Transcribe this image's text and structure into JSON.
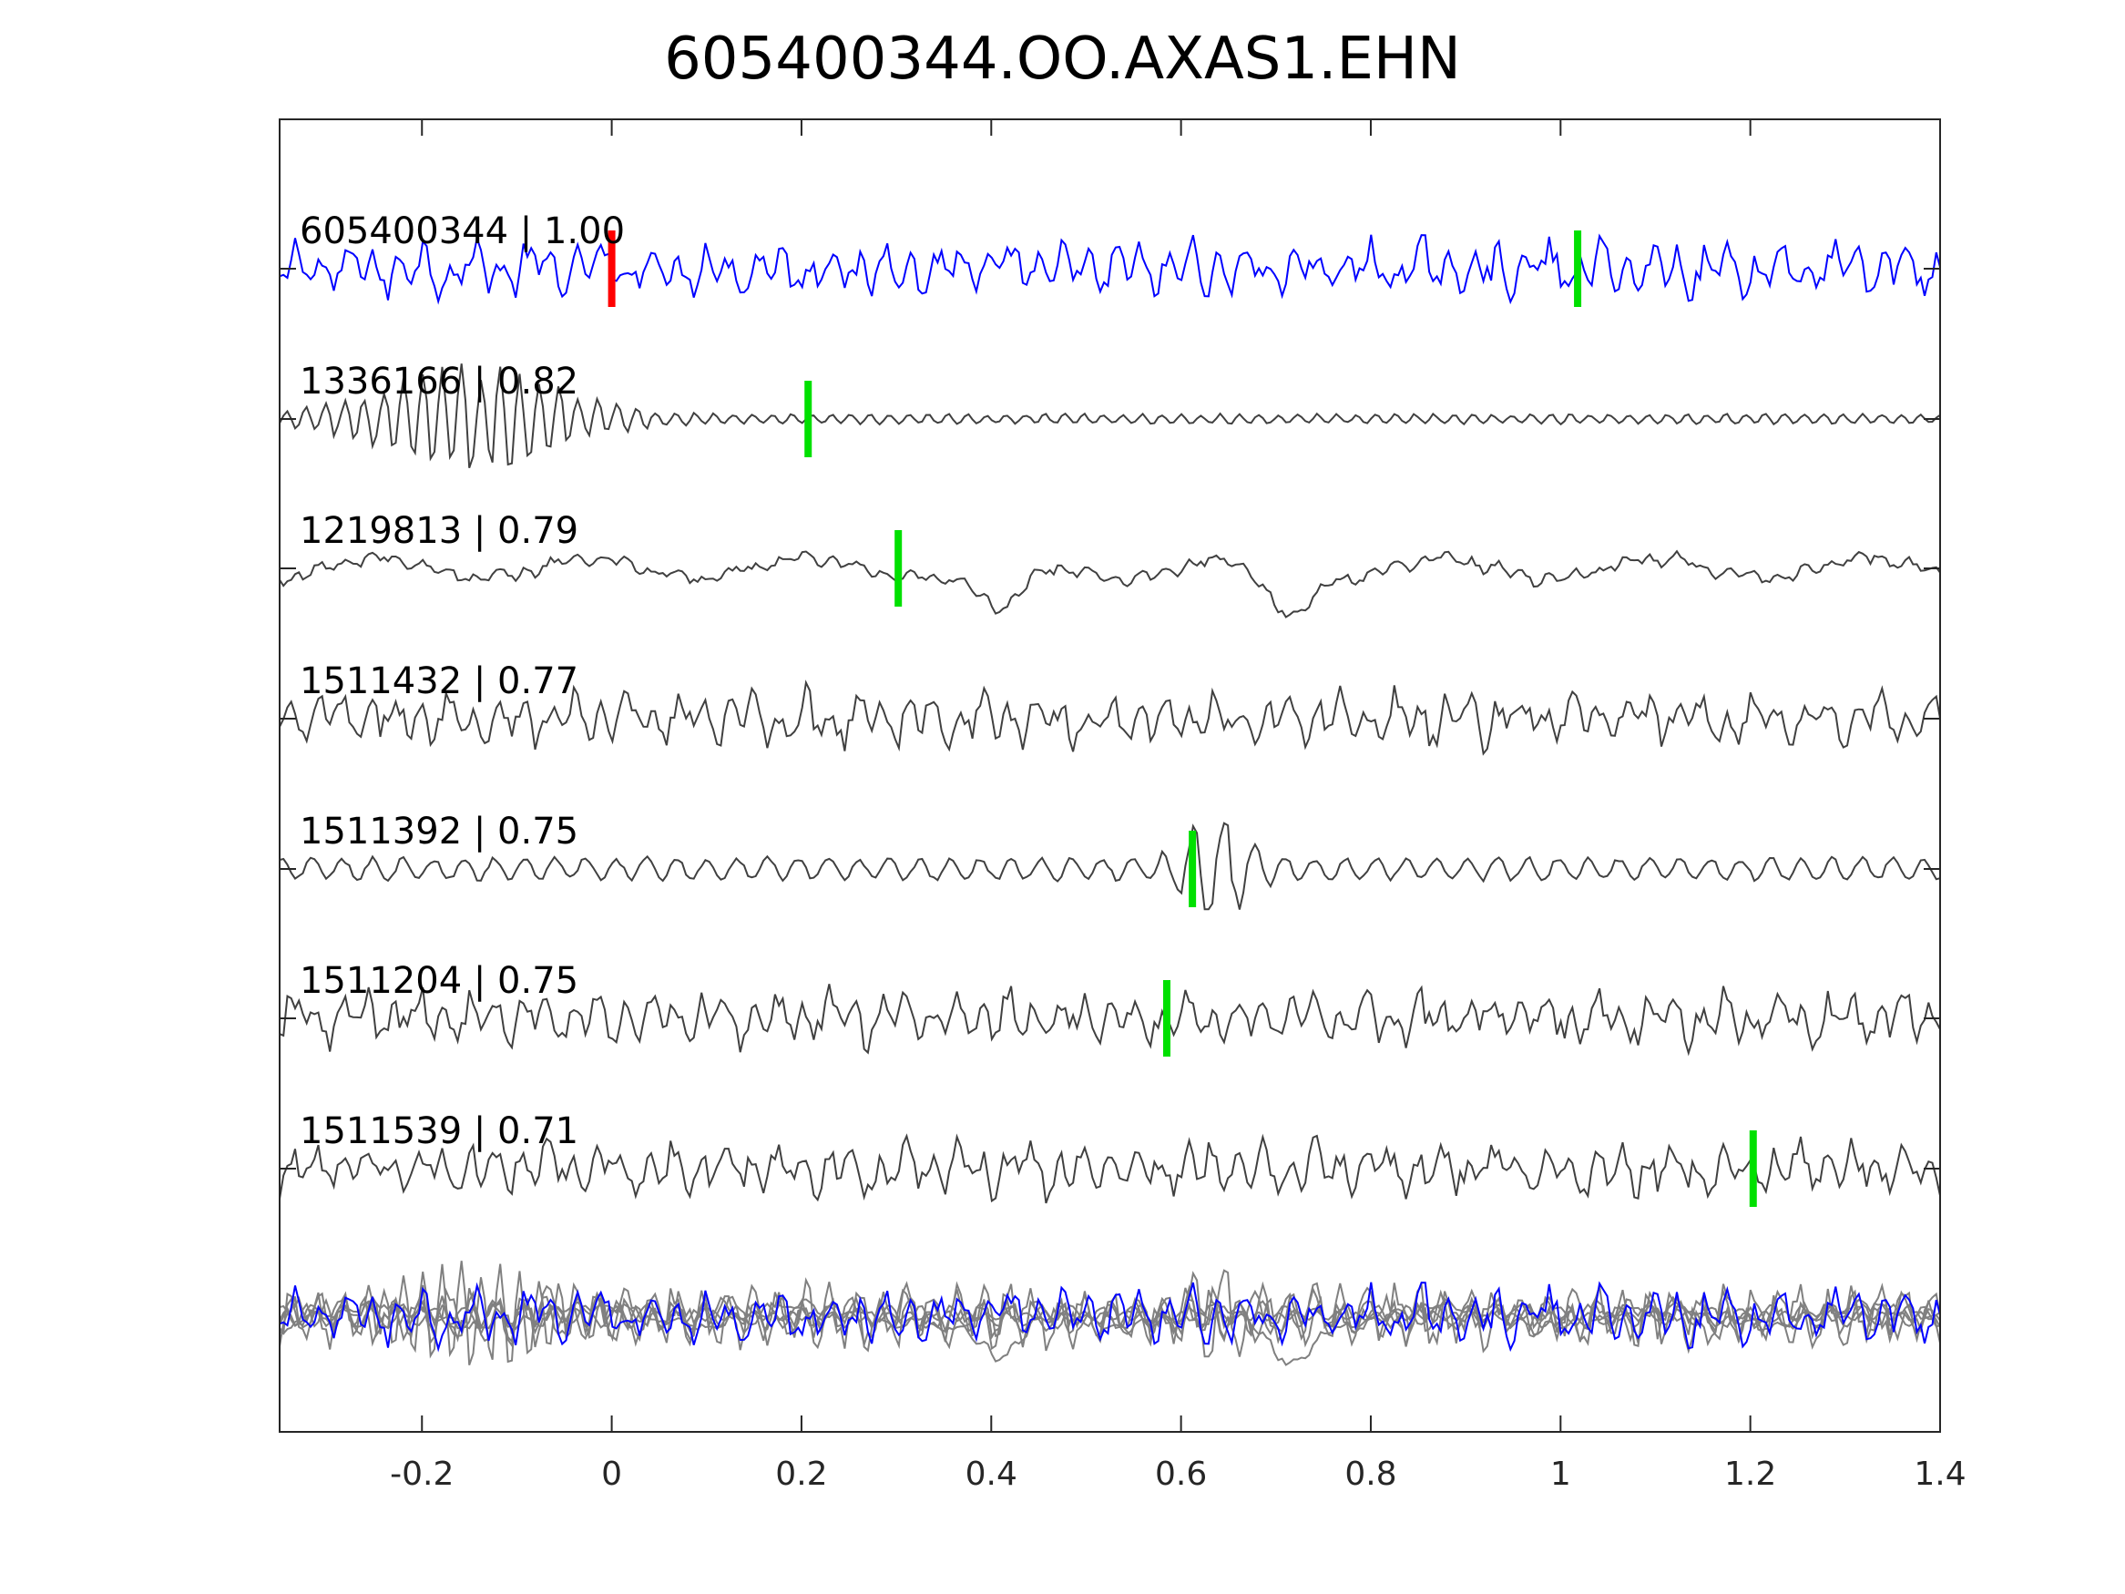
{
  "chart_data": {
    "type": "line",
    "title": "605400344.OO.AXAS1.EHN",
    "xlabel": "",
    "ylabel": "",
    "xlim": [
      -0.35,
      1.4
    ],
    "xticks": [
      -0.2,
      0,
      0.2,
      0.4,
      0.6,
      0.8,
      1,
      1.2,
      1.4
    ],
    "xtick_labels": [
      "-0.2",
      "0",
      "0.2",
      "0.4",
      "0.6",
      "0.8",
      "1",
      "1.2",
      "1.4"
    ],
    "grid": false,
    "colors": {
      "template": "#0000ff",
      "match": "#404040",
      "stack": "#808080",
      "reference_pick": "#ff0000",
      "match_pick": "#00e000"
    },
    "traces": [
      {
        "label": "605400344 | 1.00",
        "id": "605400344",
        "cc": 1.0,
        "pick_x": 0.0,
        "template": true,
        "extra_pick_x": 1.018,
        "style": "noisy"
      },
      {
        "label": "1336166 | 0.82",
        "id": "1336166",
        "cc": 0.82,
        "pick_x": 0.207,
        "template": false,
        "style": "early-burst"
      },
      {
        "label": "1219813 | 0.79",
        "id": "1219813",
        "cc": 0.79,
        "pick_x": 0.302,
        "template": false,
        "style": "long-period"
      },
      {
        "label": "1511432 | 0.77",
        "id": "1511432",
        "cc": 0.77,
        "pick_x": null,
        "template": false,
        "style": "noisy"
      },
      {
        "label": "1511392 | 0.75",
        "id": "1511392",
        "cc": 0.75,
        "pick_x": 0.612,
        "template": false,
        "style": "impulse"
      },
      {
        "label": "1511204 | 0.75",
        "id": "1511204",
        "cc": 0.75,
        "pick_x": 0.585,
        "template": false,
        "style": "noisy"
      },
      {
        "label": "1511539 | 0.71",
        "id": "1511539",
        "cc": 0.71,
        "pick_x": 1.203,
        "template": false,
        "style": "noisy"
      }
    ]
  }
}
